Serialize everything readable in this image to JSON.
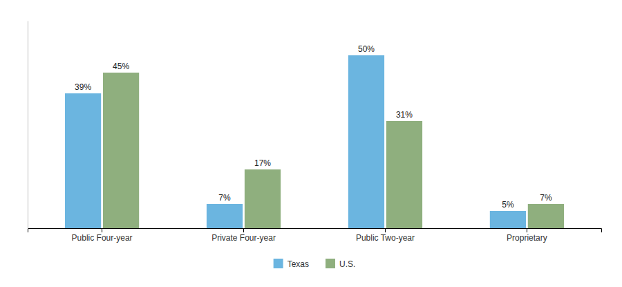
{
  "chart_data": {
    "type": "bar",
    "categories": [
      "Public Four-year",
      "Private Four-year",
      "Public Two-year",
      "Proprietary"
    ],
    "series": [
      {
        "name": "Texas",
        "color": "#6BB5E0",
        "values": [
          39,
          7,
          50,
          5
        ],
        "value_labels": [
          "39%",
          "7%",
          "50%",
          "5%"
        ]
      },
      {
        "name": "U.S.",
        "color": "#8FAF7E",
        "values": [
          45,
          17,
          31,
          7
        ],
        "value_labels": [
          "45%",
          "17%",
          "31%",
          "7%"
        ]
      }
    ],
    "ylim": [
      0,
      60
    ],
    "data_labels": true,
    "tick_labels": "x",
    "legend": "bottom",
    "grid": false
  }
}
